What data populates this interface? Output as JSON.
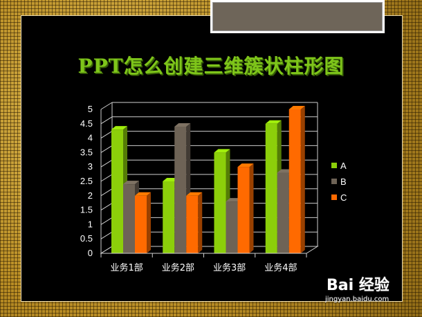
{
  "slide": {
    "title": "PPT怎么创建三维簇状柱形图"
  },
  "watermark": {
    "brand": "Bai  经验",
    "url": "jingyan.baidu.com"
  },
  "colors": {
    "A": "#8ccf0a",
    "B": "#6e6356",
    "C": "#ff6a00"
  },
  "chart_data": {
    "type": "bar",
    "categories": [
      "业务1部",
      "业务2部",
      "业务3部",
      "业务4部"
    ],
    "series": [
      {
        "name": "A",
        "values": [
          4.3,
          2.5,
          3.5,
          4.5
        ]
      },
      {
        "name": "B",
        "values": [
          2.4,
          4.4,
          1.8,
          2.8
        ]
      },
      {
        "name": "C",
        "values": [
          2.0,
          2.0,
          3.0,
          5.0
        ]
      }
    ],
    "yticks": [
      "0",
      "0.5",
      "1",
      "1.5",
      "2",
      "2.5",
      "3",
      "3.5",
      "4",
      "4.5",
      "5"
    ],
    "ylim": [
      0,
      5
    ],
    "grid": true,
    "legend_position": "right",
    "style": "3d-clustered-column"
  }
}
